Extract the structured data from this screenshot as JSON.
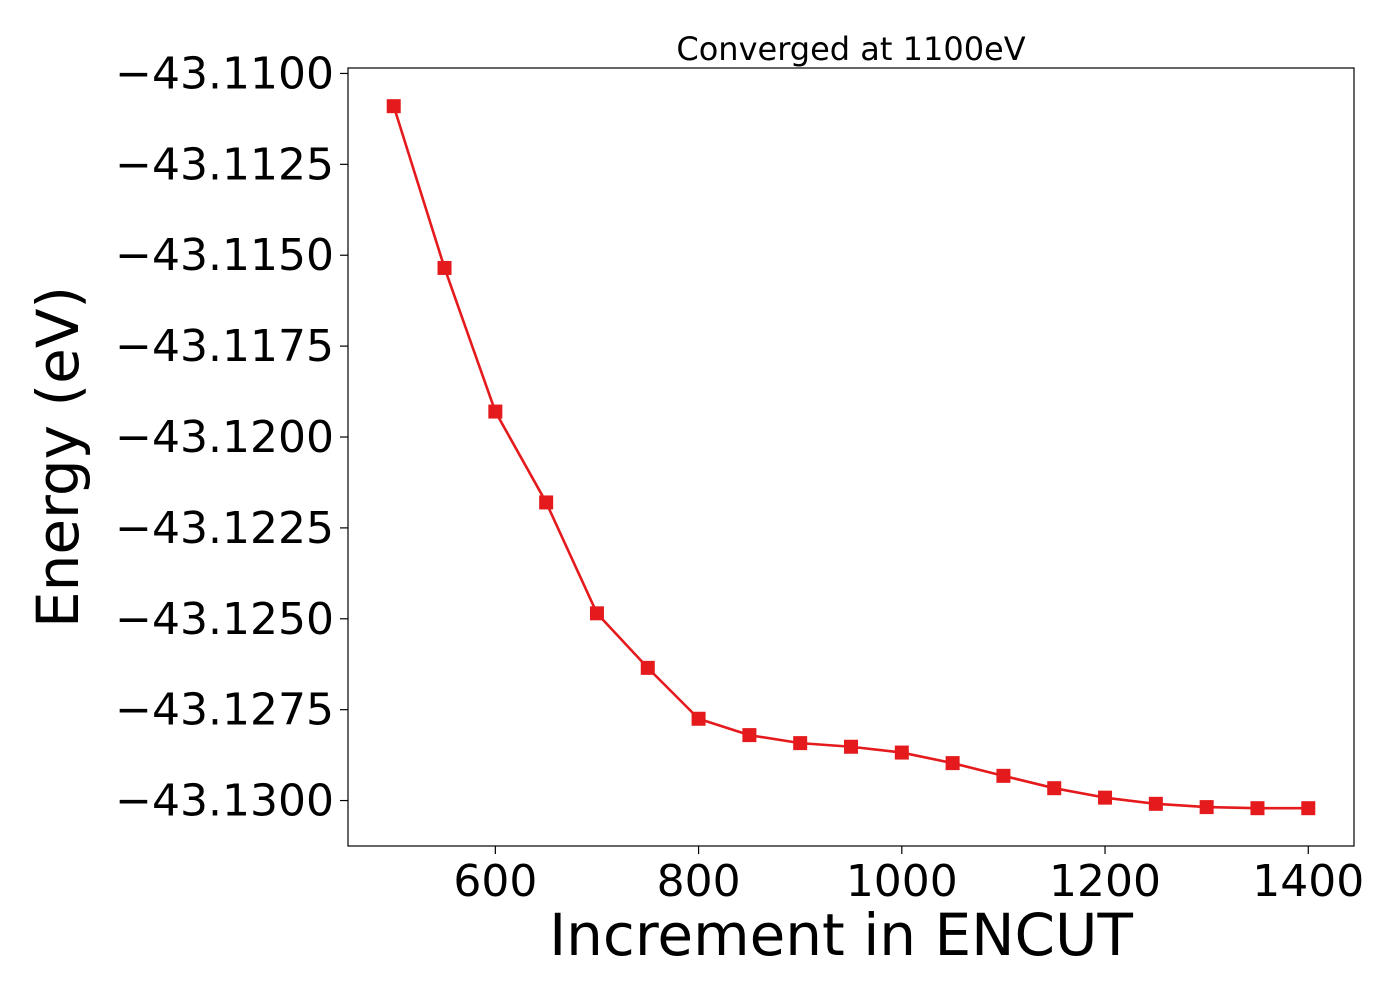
{
  "chart_data": {
    "type": "line",
    "title": "Converged at 1100eV",
    "xlabel": "Increment in ENCUT",
    "ylabel": "Energy (eV)",
    "xlim": [
      455,
      1445
    ],
    "ylim": [
      -43.13125,
      -43.10985
    ],
    "x_ticks": [
      600,
      800,
      1000,
      1200,
      1400
    ],
    "x_tick_labels": [
      "600",
      "800",
      "1000",
      "1200",
      "1400"
    ],
    "y_ticks": [
      -43.11,
      -43.1125,
      -43.115,
      -43.1175,
      -43.12,
      -43.1225,
      -43.125,
      -43.1275,
      -43.13
    ],
    "y_tick_labels": [
      "−43.1100",
      "−43.1125",
      "−43.1150",
      "−43.1175",
      "−43.1200",
      "−43.1225",
      "−43.1250",
      "−43.1275",
      "−43.1300"
    ],
    "grid": false,
    "series": [
      {
        "color": "#e41a1c",
        "marker": "square",
        "x": [
          500,
          550,
          600,
          650,
          700,
          750,
          800,
          850,
          900,
          950,
          1000,
          1050,
          1100,
          1150,
          1200,
          1250,
          1300,
          1350,
          1400
        ],
        "y": [
          -43.1109,
          -43.11535,
          -43.1193,
          -43.1218,
          -43.12485,
          -43.12635,
          -43.12775,
          -43.1282,
          -43.12842,
          -43.12852,
          -43.12868,
          -43.12897,
          -43.12932,
          -43.12966,
          -43.12992,
          -43.13009,
          -43.13018,
          -43.13021,
          -43.13021
        ]
      }
    ]
  }
}
